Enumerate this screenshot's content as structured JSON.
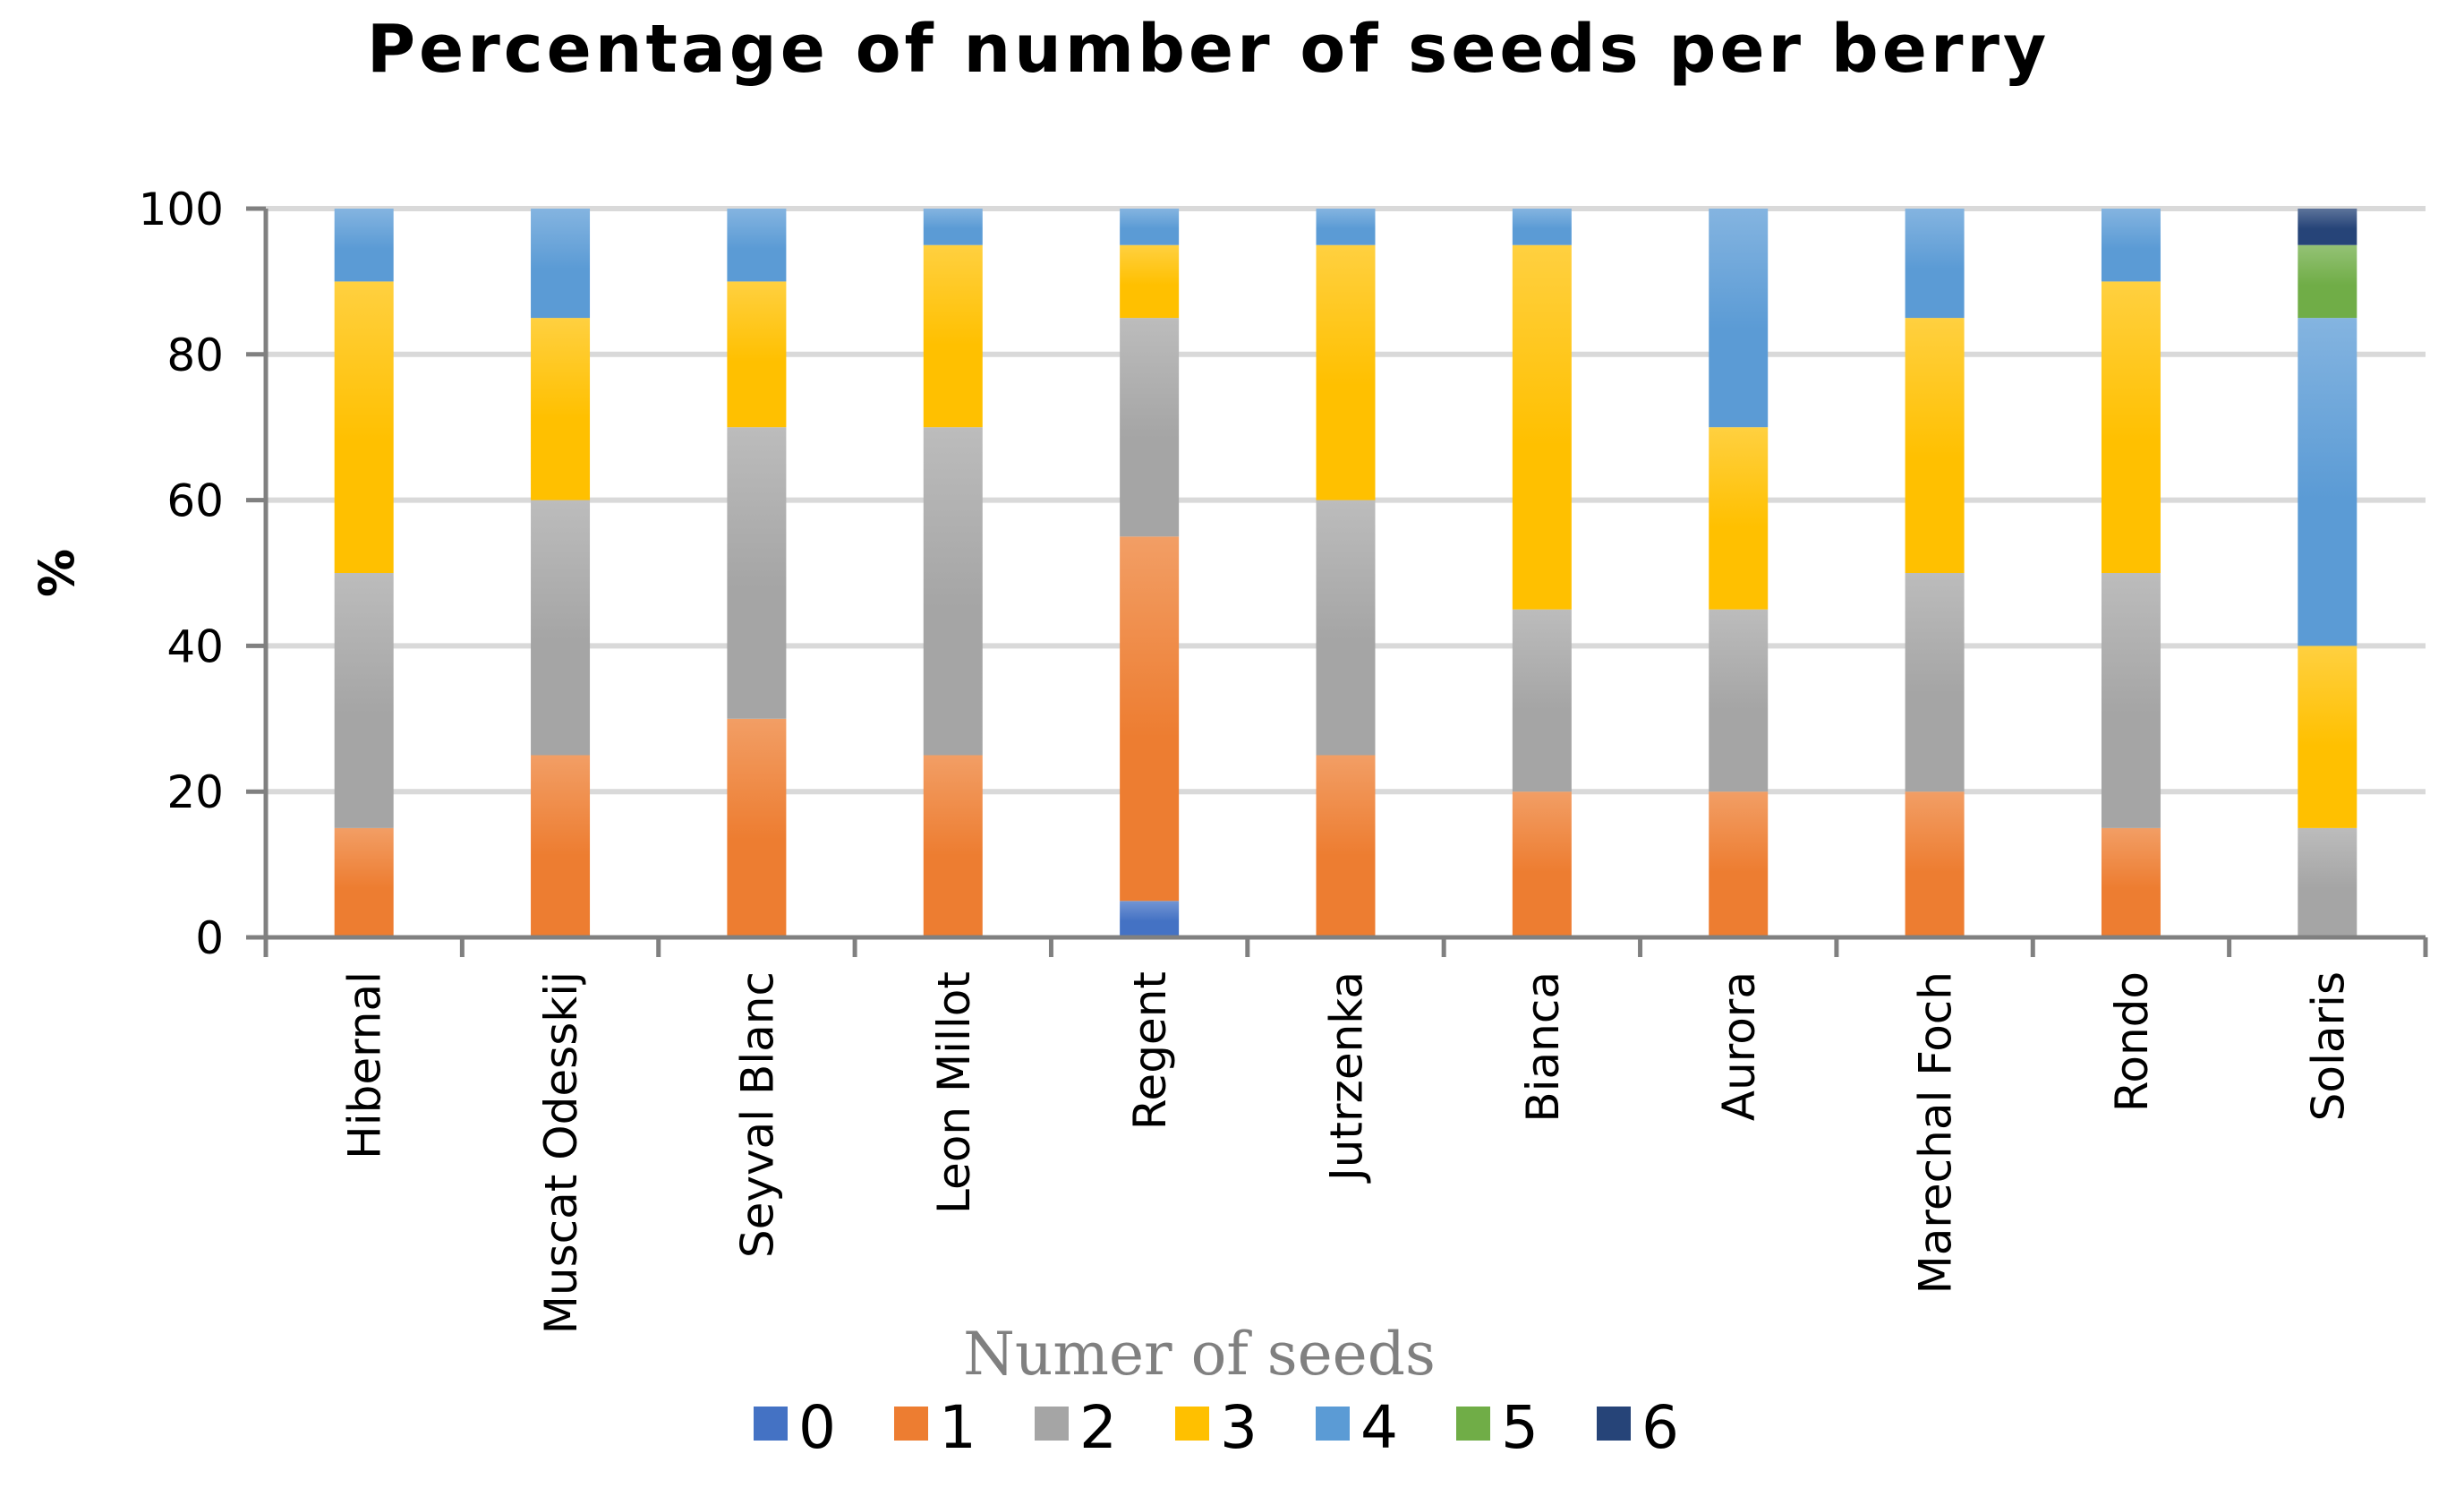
{
  "chart_data": {
    "type": "bar",
    "stacked": true,
    "title": "Percentage of number of seeds per berry",
    "xlabel": "Numer of seeds",
    "ylabel": "%",
    "ylim": [
      0,
      100
    ],
    "yticks": [
      "0",
      "20",
      "40",
      "60",
      "80",
      "100"
    ],
    "grid": true,
    "legend_position": "bottom",
    "categories": [
      "Hibernal",
      "Muscat Odesskij",
      "Seyval Blanc",
      "Leon Millot",
      "Regent",
      "Jutrzenka",
      "Bianca",
      "Aurora",
      "Marechal Foch",
      "Rondo",
      "Solaris"
    ],
    "series": [
      {
        "name": "0",
        "color": "#4472C4",
        "values": [
          0,
          0,
          0,
          0,
          5,
          0,
          0,
          0,
          0,
          0,
          0
        ]
      },
      {
        "name": "1",
        "color": "#ED7D31",
        "values": [
          15,
          25,
          30,
          25,
          50,
          25,
          20,
          20,
          20,
          15,
          0
        ]
      },
      {
        "name": "2",
        "color": "#A5A5A5",
        "values": [
          35,
          35,
          40,
          45,
          30,
          35,
          25,
          25,
          30,
          35,
          15
        ]
      },
      {
        "name": "3",
        "color": "#FFC000",
        "values": [
          40,
          25,
          20,
          25,
          10,
          35,
          50,
          25,
          35,
          40,
          25
        ]
      },
      {
        "name": "4",
        "color": "#5B9BD5",
        "values": [
          10,
          15,
          10,
          5,
          5,
          5,
          5,
          30,
          15,
          10,
          45
        ]
      },
      {
        "name": "5",
        "color": "#70AD47",
        "values": [
          0,
          0,
          0,
          0,
          0,
          0,
          0,
          0,
          0,
          0,
          10
        ]
      },
      {
        "name": "6",
        "color": "#264478",
        "values": [
          0,
          0,
          0,
          0,
          0,
          0,
          0,
          0,
          0,
          0,
          5
        ]
      }
    ]
  }
}
